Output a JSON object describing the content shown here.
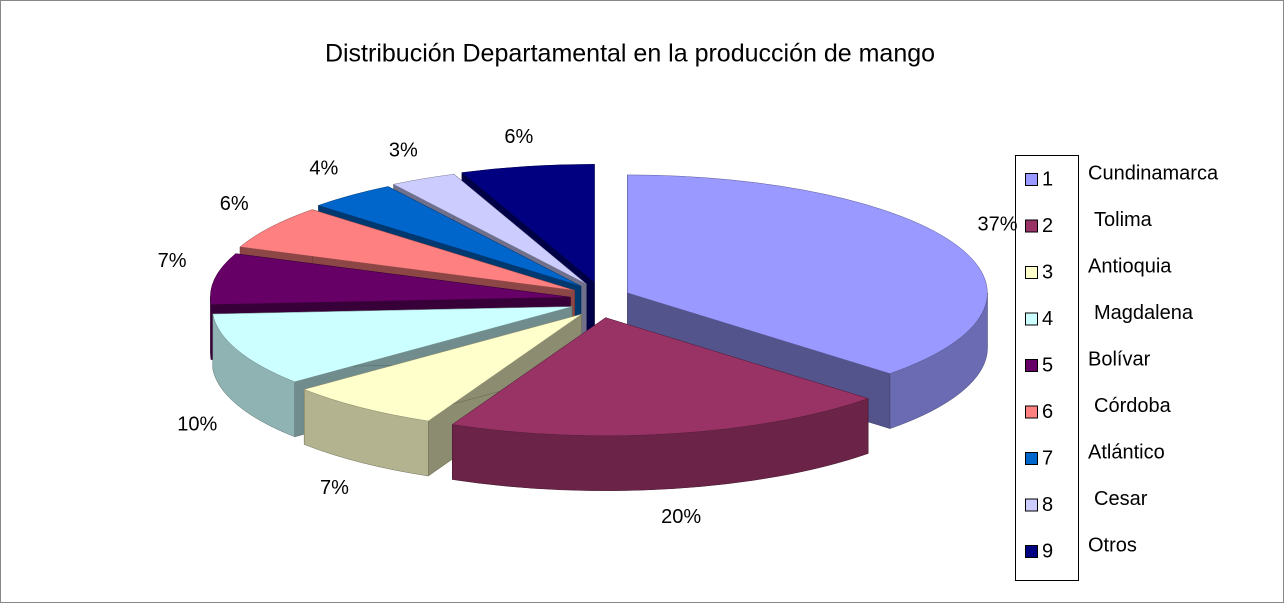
{
  "chart_data": {
    "type": "pie",
    "title": "Distribución Departamental en la producción de mango",
    "categories": [
      "1",
      "2",
      "3",
      "4",
      "5",
      "6",
      "7",
      "8",
      "9"
    ],
    "category_names": [
      "Cundinamarca",
      "Tolima",
      "Antioquia",
      "Magdalena",
      "Bolívar",
      "Córdoba",
      "Atlántico",
      "Cesar",
      "Otros"
    ],
    "values": [
      37,
      20,
      7,
      10,
      7,
      6,
      4,
      3,
      6
    ],
    "value_labels": [
      "37%",
      "20%",
      "7%",
      "10%",
      "7%",
      "6%",
      "4%",
      "3%",
      "6%"
    ],
    "colors": [
      "#9999ff",
      "#993366",
      "#ffffcc",
      "#ccffff",
      "#660066",
      "#ff8080",
      "#0066cc",
      "#ccccff",
      "#000080"
    ],
    "legend": "right"
  }
}
